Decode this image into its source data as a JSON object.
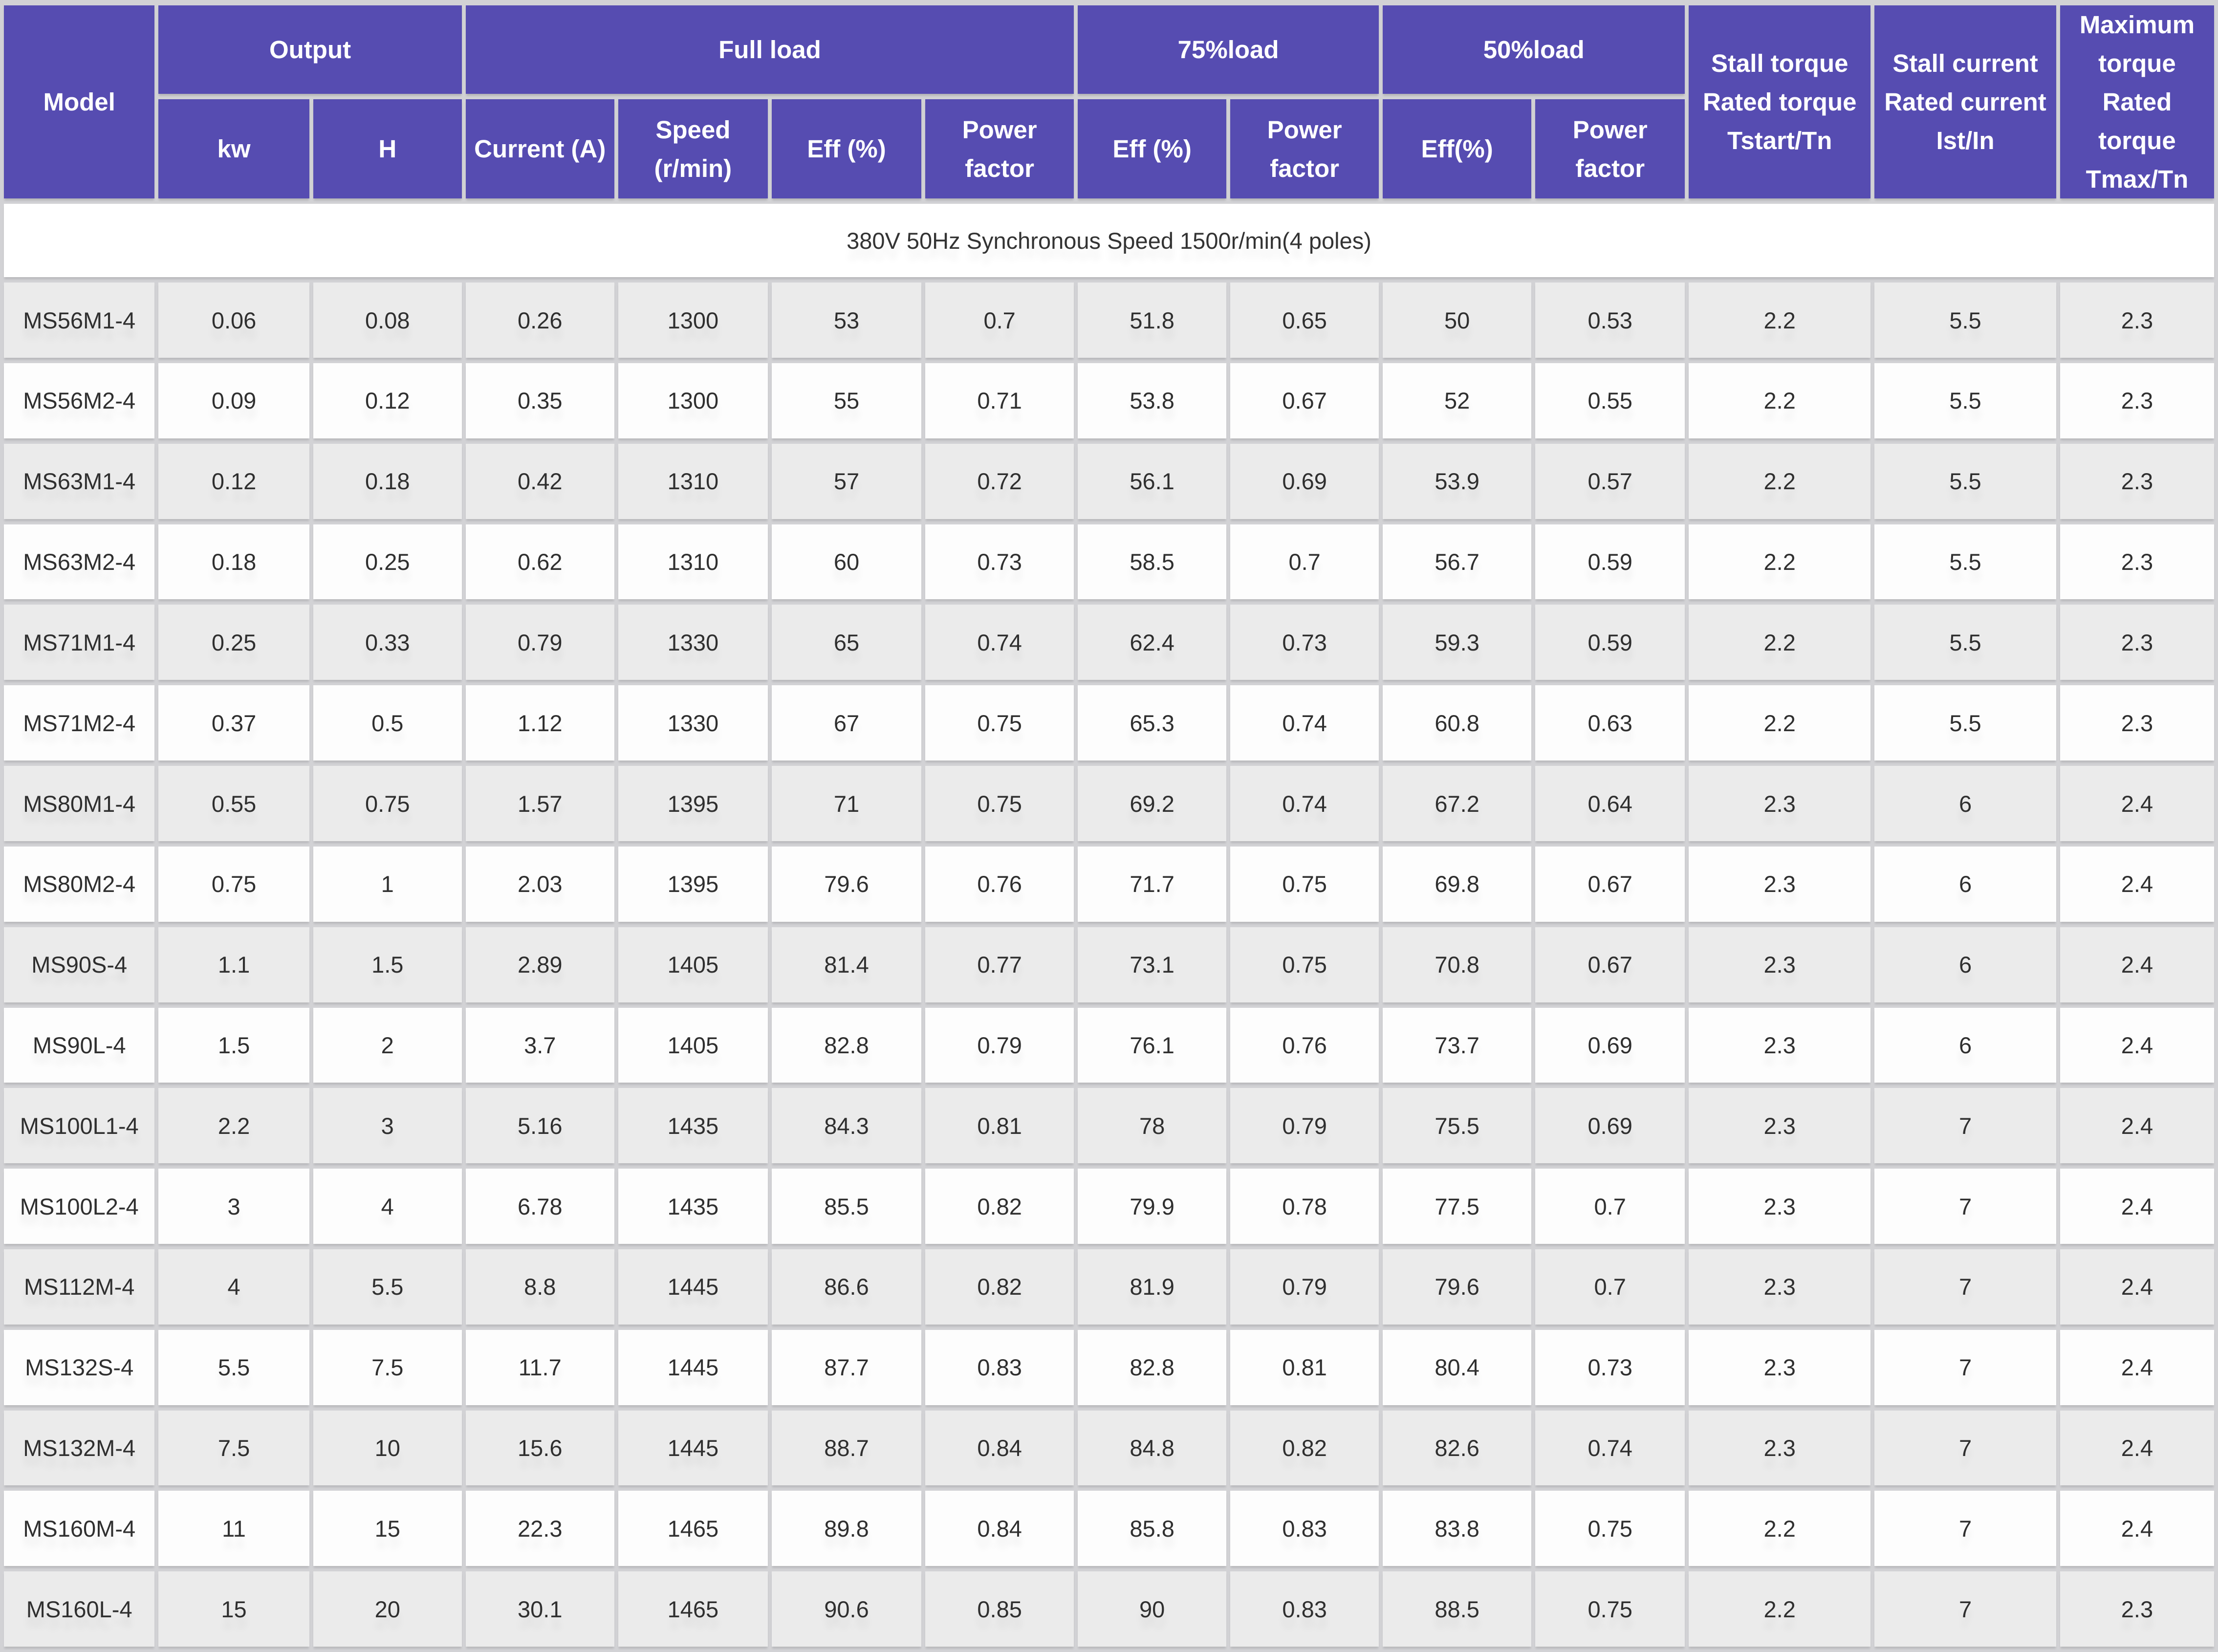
{
  "colors": {
    "header_bg": "#564cb1",
    "header_text": "#ffffff",
    "row_bg": "#fdfdfd",
    "row_alt_bg": "#ebebeb",
    "grid_bg": "#d2d2d5",
    "cell_text": "#2f2f2f"
  },
  "table": {
    "header": {
      "model": "Model",
      "output": "Output",
      "full_load": "Full load",
      "load_75": "75%load",
      "load_50": "50%load",
      "stall_torque": "Stall torque\nRated torque\nTstart/Tn",
      "stall_current": "Stall current\nRated current\nIst/In",
      "max_torque": "Maximum\ntorque\nRated torque\nTmax/Tn"
    },
    "subheader": [
      "kw",
      "H",
      "Current (A)",
      "Speed\n(r/min)",
      "Eff (%)",
      "Power factor",
      "Eff (%)",
      "Power factor",
      "Eff(%)",
      "Power\nfactor"
    ],
    "section_title": "380V 50Hz Synchronous Speed 1500r/min(4 poles)",
    "rows": [
      [
        "MS56M1-4",
        "0.06",
        "0.08",
        "0.26",
        "1300",
        "53",
        "0.7",
        "51.8",
        "0.65",
        "50",
        "0.53",
        "2.2",
        "5.5",
        "2.3"
      ],
      [
        "MS56M2-4",
        "0.09",
        "0.12",
        "0.35",
        "1300",
        "55",
        "0.71",
        "53.8",
        "0.67",
        "52",
        "0.55",
        "2.2",
        "5.5",
        "2.3"
      ],
      [
        "MS63M1-4",
        "0.12",
        "0.18",
        "0.42",
        "1310",
        "57",
        "0.72",
        "56.1",
        "0.69",
        "53.9",
        "0.57",
        "2.2",
        "5.5",
        "2.3"
      ],
      [
        "MS63M2-4",
        "0.18",
        "0.25",
        "0.62",
        "1310",
        "60",
        "0.73",
        "58.5",
        "0.7",
        "56.7",
        "0.59",
        "2.2",
        "5.5",
        "2.3"
      ],
      [
        "MS71M1-4",
        "0.25",
        "0.33",
        "0.79",
        "1330",
        "65",
        "0.74",
        "62.4",
        "0.73",
        "59.3",
        "0.59",
        "2.2",
        "5.5",
        "2.3"
      ],
      [
        "MS71M2-4",
        "0.37",
        "0.5",
        "1.12",
        "1330",
        "67",
        "0.75",
        "65.3",
        "0.74",
        "60.8",
        "0.63",
        "2.2",
        "5.5",
        "2.3"
      ],
      [
        "MS80M1-4",
        "0.55",
        "0.75",
        "1.57",
        "1395",
        "71",
        "0.75",
        "69.2",
        "0.74",
        "67.2",
        "0.64",
        "2.3",
        "6",
        "2.4"
      ],
      [
        "MS80M2-4",
        "0.75",
        "1",
        "2.03",
        "1395",
        "79.6",
        "0.76",
        "71.7",
        "0.75",
        "69.8",
        "0.67",
        "2.3",
        "6",
        "2.4"
      ],
      [
        "MS90S-4",
        "1.1",
        "1.5",
        "2.89",
        "1405",
        "81.4",
        "0.77",
        "73.1",
        "0.75",
        "70.8",
        "0.67",
        "2.3",
        "6",
        "2.4"
      ],
      [
        "MS90L-4",
        "1.5",
        "2",
        "3.7",
        "1405",
        "82.8",
        "0.79",
        "76.1",
        "0.76",
        "73.7",
        "0.69",
        "2.3",
        "6",
        "2.4"
      ],
      [
        "MS100L1-4",
        "2.2",
        "3",
        "5.16",
        "1435",
        "84.3",
        "0.81",
        "78",
        "0.79",
        "75.5",
        "0.69",
        "2.3",
        "7",
        "2.4"
      ],
      [
        "MS100L2-4",
        "3",
        "4",
        "6.78",
        "1435",
        "85.5",
        "0.82",
        "79.9",
        "0.78",
        "77.5",
        "0.7",
        "2.3",
        "7",
        "2.4"
      ],
      [
        "MS112M-4",
        "4",
        "5.5",
        "8.8",
        "1445",
        "86.6",
        "0.82",
        "81.9",
        "0.79",
        "79.6",
        "0.7",
        "2.3",
        "7",
        "2.4"
      ],
      [
        "MS132S-4",
        "5.5",
        "7.5",
        "11.7",
        "1445",
        "87.7",
        "0.83",
        "82.8",
        "0.81",
        "80.4",
        "0.73",
        "2.3",
        "7",
        "2.4"
      ],
      [
        "MS132M-4",
        "7.5",
        "10",
        "15.6",
        "1445",
        "88.7",
        "0.84",
        "84.8",
        "0.82",
        "82.6",
        "0.74",
        "2.3",
        "7",
        "2.4"
      ],
      [
        "MS160M-4",
        "11",
        "15",
        "22.3",
        "1465",
        "89.8",
        "0.84",
        "85.8",
        "0.83",
        "83.8",
        "0.75",
        "2.2",
        "7",
        "2.4"
      ],
      [
        "MS160L-4",
        "15",
        "20",
        "30.1",
        "1465",
        "90.6",
        "0.85",
        "90",
        "0.83",
        "88.5",
        "0.75",
        "2.2",
        "7",
        "2.3"
      ]
    ]
  }
}
